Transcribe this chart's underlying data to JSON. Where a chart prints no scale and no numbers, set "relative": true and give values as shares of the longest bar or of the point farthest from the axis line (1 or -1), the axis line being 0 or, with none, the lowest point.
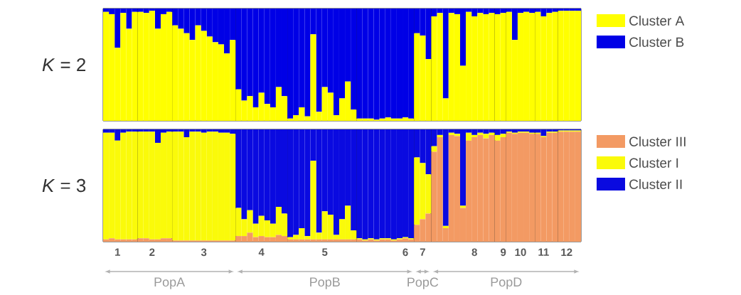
{
  "chart_data": [
    {
      "type": "bar",
      "stacked": true,
      "relative": true,
      "ylabel": "*K* = 2",
      "legend": "right",
      "tick_labels": false,
      "categories": [
        null,
        null,
        "1",
        null,
        null,
        null,
        null,
        null,
        "2",
        null,
        null,
        null,
        null,
        null,
        null,
        null,
        null,
        "3",
        null,
        null,
        null,
        null,
        null,
        null,
        null,
        null,
        null,
        "4",
        null,
        null,
        null,
        null,
        null,
        null,
        null,
        null,
        null,
        null,
        "5",
        null,
        null,
        null,
        null,
        null,
        null,
        null,
        null,
        null,
        null,
        null,
        null,
        null,
        "6",
        null,
        null,
        "7",
        null,
        null,
        null,
        null,
        null,
        null,
        null,
        null,
        "8",
        null,
        null,
        null,
        null,
        "9",
        null,
        null,
        "10",
        null,
        null,
        null,
        "11",
        null,
        null,
        null,
        "12",
        null,
        null
      ],
      "series": [
        {
          "name": "Cluster A",
          "color": "#ffff00",
          "values": [
            0.97,
            0.95,
            0.65,
            0.96,
            0.82,
            0.97,
            0.97,
            0.96,
            0.98,
            0.82,
            0.95,
            0.97,
            0.85,
            0.82,
            0.78,
            0.72,
            0.85,
            0.8,
            0.75,
            0.7,
            0.68,
            0.6,
            0.72,
            0.28,
            0.18,
            0.22,
            0.12,
            0.25,
            0.15,
            0.12,
            0.3,
            0.22,
            0.02,
            0.05,
            0.12,
            0.04,
            0.77,
            0.08,
            0.3,
            0.25,
            0.05,
            0.2,
            0.35,
            0.1,
            0.02,
            0.02,
            0.02,
            0.01,
            0.02,
            0.03,
            0.02,
            0.02,
            0.03,
            0.02,
            0.78,
            0.76,
            0.55,
            0.93,
            0.96,
            0.2,
            0.96,
            0.95,
            0.49,
            0.97,
            0.93,
            0.96,
            0.95,
            0.96,
            0.95,
            0.96,
            0.97,
            0.72,
            0.96,
            0.97,
            0.96,
            0.97,
            0.93,
            0.96,
            0.97,
            0.98,
            0.98,
            0.98,
            0.98
          ]
        },
        {
          "name": "Cluster B",
          "color": "#0000e6",
          "values": [
            0.03,
            0.05,
            0.35,
            0.04,
            0.18,
            0.03,
            0.03,
            0.04,
            0.02,
            0.18,
            0.05,
            0.03,
            0.15,
            0.18,
            0.22,
            0.28,
            0.15,
            0.2,
            0.25,
            0.3,
            0.32,
            0.4,
            0.28,
            0.72,
            0.82,
            0.78,
            0.88,
            0.75,
            0.85,
            0.88,
            0.7,
            0.78,
            0.98,
            0.95,
            0.88,
            0.96,
            0.23,
            0.92,
            0.7,
            0.75,
            0.95,
            0.8,
            0.65,
            0.9,
            0.98,
            0.98,
            0.98,
            0.99,
            0.98,
            0.97,
            0.98,
            0.98,
            0.97,
            0.98,
            0.22,
            0.24,
            0.45,
            0.07,
            0.04,
            0.8,
            0.04,
            0.05,
            0.51,
            0.03,
            0.07,
            0.04,
            0.05,
            0.04,
            0.05,
            0.04,
            0.03,
            0.28,
            0.04,
            0.03,
            0.04,
            0.03,
            0.07,
            0.04,
            0.03,
            0.02,
            0.02,
            0.02,
            0.02
          ]
        }
      ]
    },
    {
      "type": "bar",
      "stacked": true,
      "relative": true,
      "ylabel": "*K* = 3",
      "legend": "right",
      "tick_labels": "x",
      "categories": [
        null,
        null,
        "1",
        null,
        null,
        null,
        null,
        null,
        "2",
        null,
        null,
        null,
        null,
        null,
        null,
        null,
        null,
        "3",
        null,
        null,
        null,
        null,
        null,
        null,
        null,
        null,
        null,
        "4",
        null,
        null,
        null,
        null,
        null,
        null,
        null,
        null,
        null,
        null,
        "5",
        null,
        null,
        null,
        null,
        null,
        null,
        null,
        null,
        null,
        null,
        null,
        null,
        null,
        "6",
        null,
        null,
        "7",
        null,
        null,
        null,
        null,
        null,
        null,
        null,
        null,
        "8",
        null,
        null,
        null,
        null,
        "9",
        null,
        null,
        "10",
        null,
        null,
        null,
        "11",
        null,
        null,
        null,
        "12",
        null,
        null
      ],
      "annotations": [
        "PopA",
        "PopB",
        "PopC",
        "PopD"
      ],
      "series": [
        {
          "name": "Cluster III",
          "color": "#f39a63",
          "values": [
            0.02,
            0.03,
            0.02,
            0.02,
            0.02,
            0.02,
            0.03,
            0.03,
            0.02,
            0.02,
            0.03,
            0.03,
            0.01,
            0.01,
            0.01,
            0.01,
            0.01,
            0.01,
            0.01,
            0.01,
            0.01,
            0.01,
            0.01,
            0.05,
            0.05,
            0.08,
            0.04,
            0.05,
            0.04,
            0.04,
            0.06,
            0.05,
            0.02,
            0.02,
            0.02,
            0.02,
            0.02,
            0.02,
            0.02,
            0.02,
            0.02,
            0.02,
            0.02,
            0.02,
            0.02,
            0.01,
            0.02,
            0.01,
            0.02,
            0.02,
            0.01,
            0.02,
            0.03,
            0.02,
            0.15,
            0.2,
            0.25,
            0.8,
            0.93,
            0.12,
            0.95,
            0.94,
            0.3,
            0.9,
            0.93,
            0.95,
            0.92,
            0.95,
            0.9,
            0.93,
            0.97,
            0.96,
            0.97,
            0.97,
            0.96,
            0.96,
            0.93,
            0.97,
            0.97,
            0.98,
            0.98,
            0.98,
            0.98
          ]
        },
        {
          "name": "Cluster I",
          "color": "#fafa0a",
          "values": [
            0.95,
            0.94,
            0.88,
            0.95,
            0.96,
            0.96,
            0.95,
            0.95,
            0.96,
            0.86,
            0.94,
            0.95,
            0.97,
            0.97,
            0.92,
            0.97,
            0.97,
            0.96,
            0.97,
            0.97,
            0.96,
            0.96,
            0.95,
            0.25,
            0.15,
            0.2,
            0.12,
            0.18,
            0.15,
            0.12,
            0.25,
            0.2,
            0.02,
            0.04,
            0.1,
            0.03,
            0.7,
            0.06,
            0.25,
            0.22,
            0.04,
            0.18,
            0.3,
            0.08,
            0.01,
            0.01,
            0.01,
            0.01,
            0.01,
            0.01,
            0.01,
            0.01,
            0.01,
            0.01,
            0.6,
            0.5,
            0.35,
            0.05,
            0.02,
            0.02,
            0.02,
            0.02,
            0.02,
            0.07,
            0.02,
            0.02,
            0.04,
            0.02,
            0.05,
            0.03,
            0.01,
            0.01,
            0.01,
            0.01,
            0.01,
            0.01,
            0.01,
            0.01,
            0.01,
            0.01,
            0.01,
            0.01,
            0.01
          ]
        },
        {
          "name": "Cluster II",
          "color": "#0a0ae0",
          "values": [
            0.03,
            0.03,
            0.1,
            0.03,
            0.02,
            0.02,
            0.02,
            0.02,
            0.02,
            0.12,
            0.03,
            0.02,
            0.02,
            0.02,
            0.07,
            0.02,
            0.02,
            0.03,
            0.02,
            0.02,
            0.03,
            0.03,
            0.04,
            0.7,
            0.8,
            0.72,
            0.84,
            0.77,
            0.81,
            0.84,
            0.69,
            0.75,
            0.96,
            0.94,
            0.88,
            0.95,
            0.28,
            0.92,
            0.73,
            0.76,
            0.94,
            0.8,
            0.68,
            0.9,
            0.97,
            0.98,
            0.97,
            0.98,
            0.97,
            0.97,
            0.98,
            0.97,
            0.96,
            0.97,
            0.25,
            0.3,
            0.4,
            0.15,
            0.05,
            0.86,
            0.03,
            0.04,
            0.68,
            0.03,
            0.05,
            0.03,
            0.04,
            0.03,
            0.05,
            0.04,
            0.02,
            0.03,
            0.02,
            0.02,
            0.03,
            0.03,
            0.06,
            0.02,
            0.02,
            0.01,
            0.01,
            0.01,
            0.01
          ]
        }
      ]
    }
  ]
}
